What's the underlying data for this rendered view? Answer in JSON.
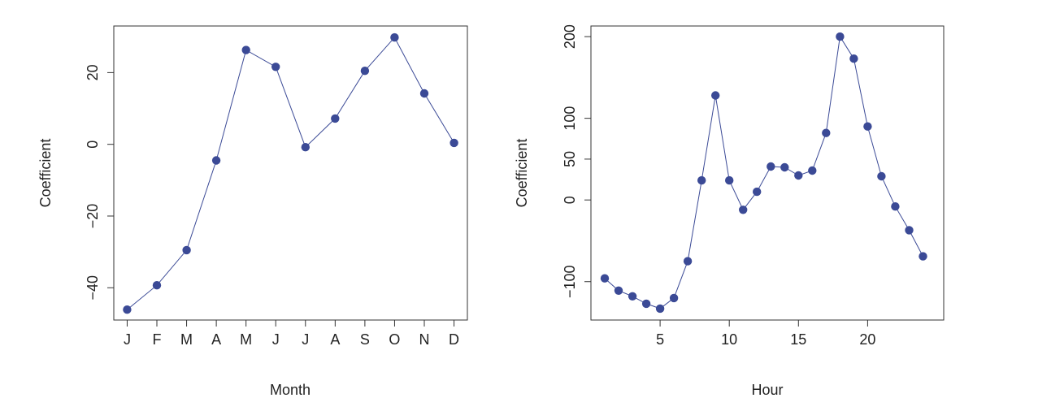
{
  "chart_data": [
    {
      "type": "line",
      "xlabel": "Month",
      "ylabel": "Coefficient",
      "categories": [
        "J",
        "F",
        "M",
        "A",
        "M",
        "J",
        "J",
        "A",
        "S",
        "O",
        "N",
        "D"
      ],
      "values": [
        -46.1,
        -39.3,
        -29.5,
        -4.5,
        26.3,
        21.6,
        -0.8,
        7.2,
        20.5,
        29.8,
        14.2,
        0.4
      ],
      "ylim": [
        -49,
        33
      ],
      "yticks": [
        -40,
        -20,
        0,
        20
      ],
      "color": "#3b4a96",
      "grid": false
    },
    {
      "type": "line",
      "xlabel": "Hour",
      "ylabel": "Coefficient",
      "x": [
        1,
        2,
        3,
        4,
        5,
        6,
        7,
        8,
        9,
        10,
        11,
        12,
        13,
        14,
        15,
        16,
        17,
        18,
        19,
        20,
        21,
        22,
        23,
        24
      ],
      "values": [
        -96,
        -111,
        -118,
        -127,
        -133,
        -120,
        -75,
        24,
        128,
        24,
        -12,
        10,
        41,
        40,
        30,
        36,
        82,
        200,
        173,
        90,
        29,
        -8,
        -37,
        -69
      ],
      "xlim": [
        0,
        25.5
      ],
      "ylim": [
        -147,
        213
      ],
      "xticks": [
        5,
        10,
        15,
        20
      ],
      "yticks": [
        -100,
        0,
        50,
        100,
        200
      ],
      "color": "#3b4a96",
      "grid": false
    }
  ]
}
